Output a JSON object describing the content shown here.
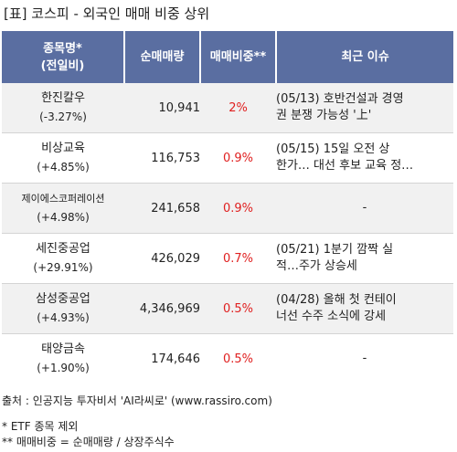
{
  "title": "[표] 코스피 - 외국인 매매 비중 상위",
  "table": {
    "headers": {
      "stock_line1": "종목명*",
      "stock_line2": "(전일비)",
      "volume": "순매매량",
      "ratio": "매매비중**",
      "issue": "최근 이슈"
    },
    "rows": [
      {
        "name": "한진칼우",
        "change": "(-3.27%)",
        "volume": "10,941",
        "ratio": "2%",
        "issue_line1": "(05/13) 호반건설과 경영",
        "issue_line2": "권 분쟁 가능성 '上'"
      },
      {
        "name": "비상교육",
        "change": "(+4.85%)",
        "volume": "116,753",
        "ratio": "0.9%",
        "issue_line1": "(05/15) 15일 오전 상",
        "issue_line2": "한가… 대선 후보 교육 정…"
      },
      {
        "name": "제이에스코퍼레이션",
        "change": "(+4.98%)",
        "volume": "241,658",
        "ratio": "0.9%",
        "issue_line1": "-",
        "issue_line2": ""
      },
      {
        "name": "세진중공업",
        "change": "(+29.91%)",
        "volume": "426,029",
        "ratio": "0.7%",
        "issue_line1": "(05/21) 1분기 깜짝 실",
        "issue_line2": "적…주가 상승세"
      },
      {
        "name": "삼성중공업",
        "change": "(+4.93%)",
        "volume": "4,346,969",
        "ratio": "0.5%",
        "issue_line1": "(04/28) 올해 첫 컨테이",
        "issue_line2": "너선 수주 소식에 강세"
      },
      {
        "name": "태양금속",
        "change": "(+1.90%)",
        "volume": "174,646",
        "ratio": "0.5%",
        "issue_line1": "-",
        "issue_line2": ""
      }
    ]
  },
  "footer": {
    "source": "출처 : 인공지능 투자비서 'AI라씨로' (www.rassiro.com)",
    "note1": "* ETF 종목 제외",
    "note2": "** 매매비중 = 순매매량 / 상장주식수"
  },
  "colors": {
    "header_bg": "#5a6ea1",
    "ratio_text": "#e02020",
    "odd_row_bg": "#f1f1f1"
  }
}
